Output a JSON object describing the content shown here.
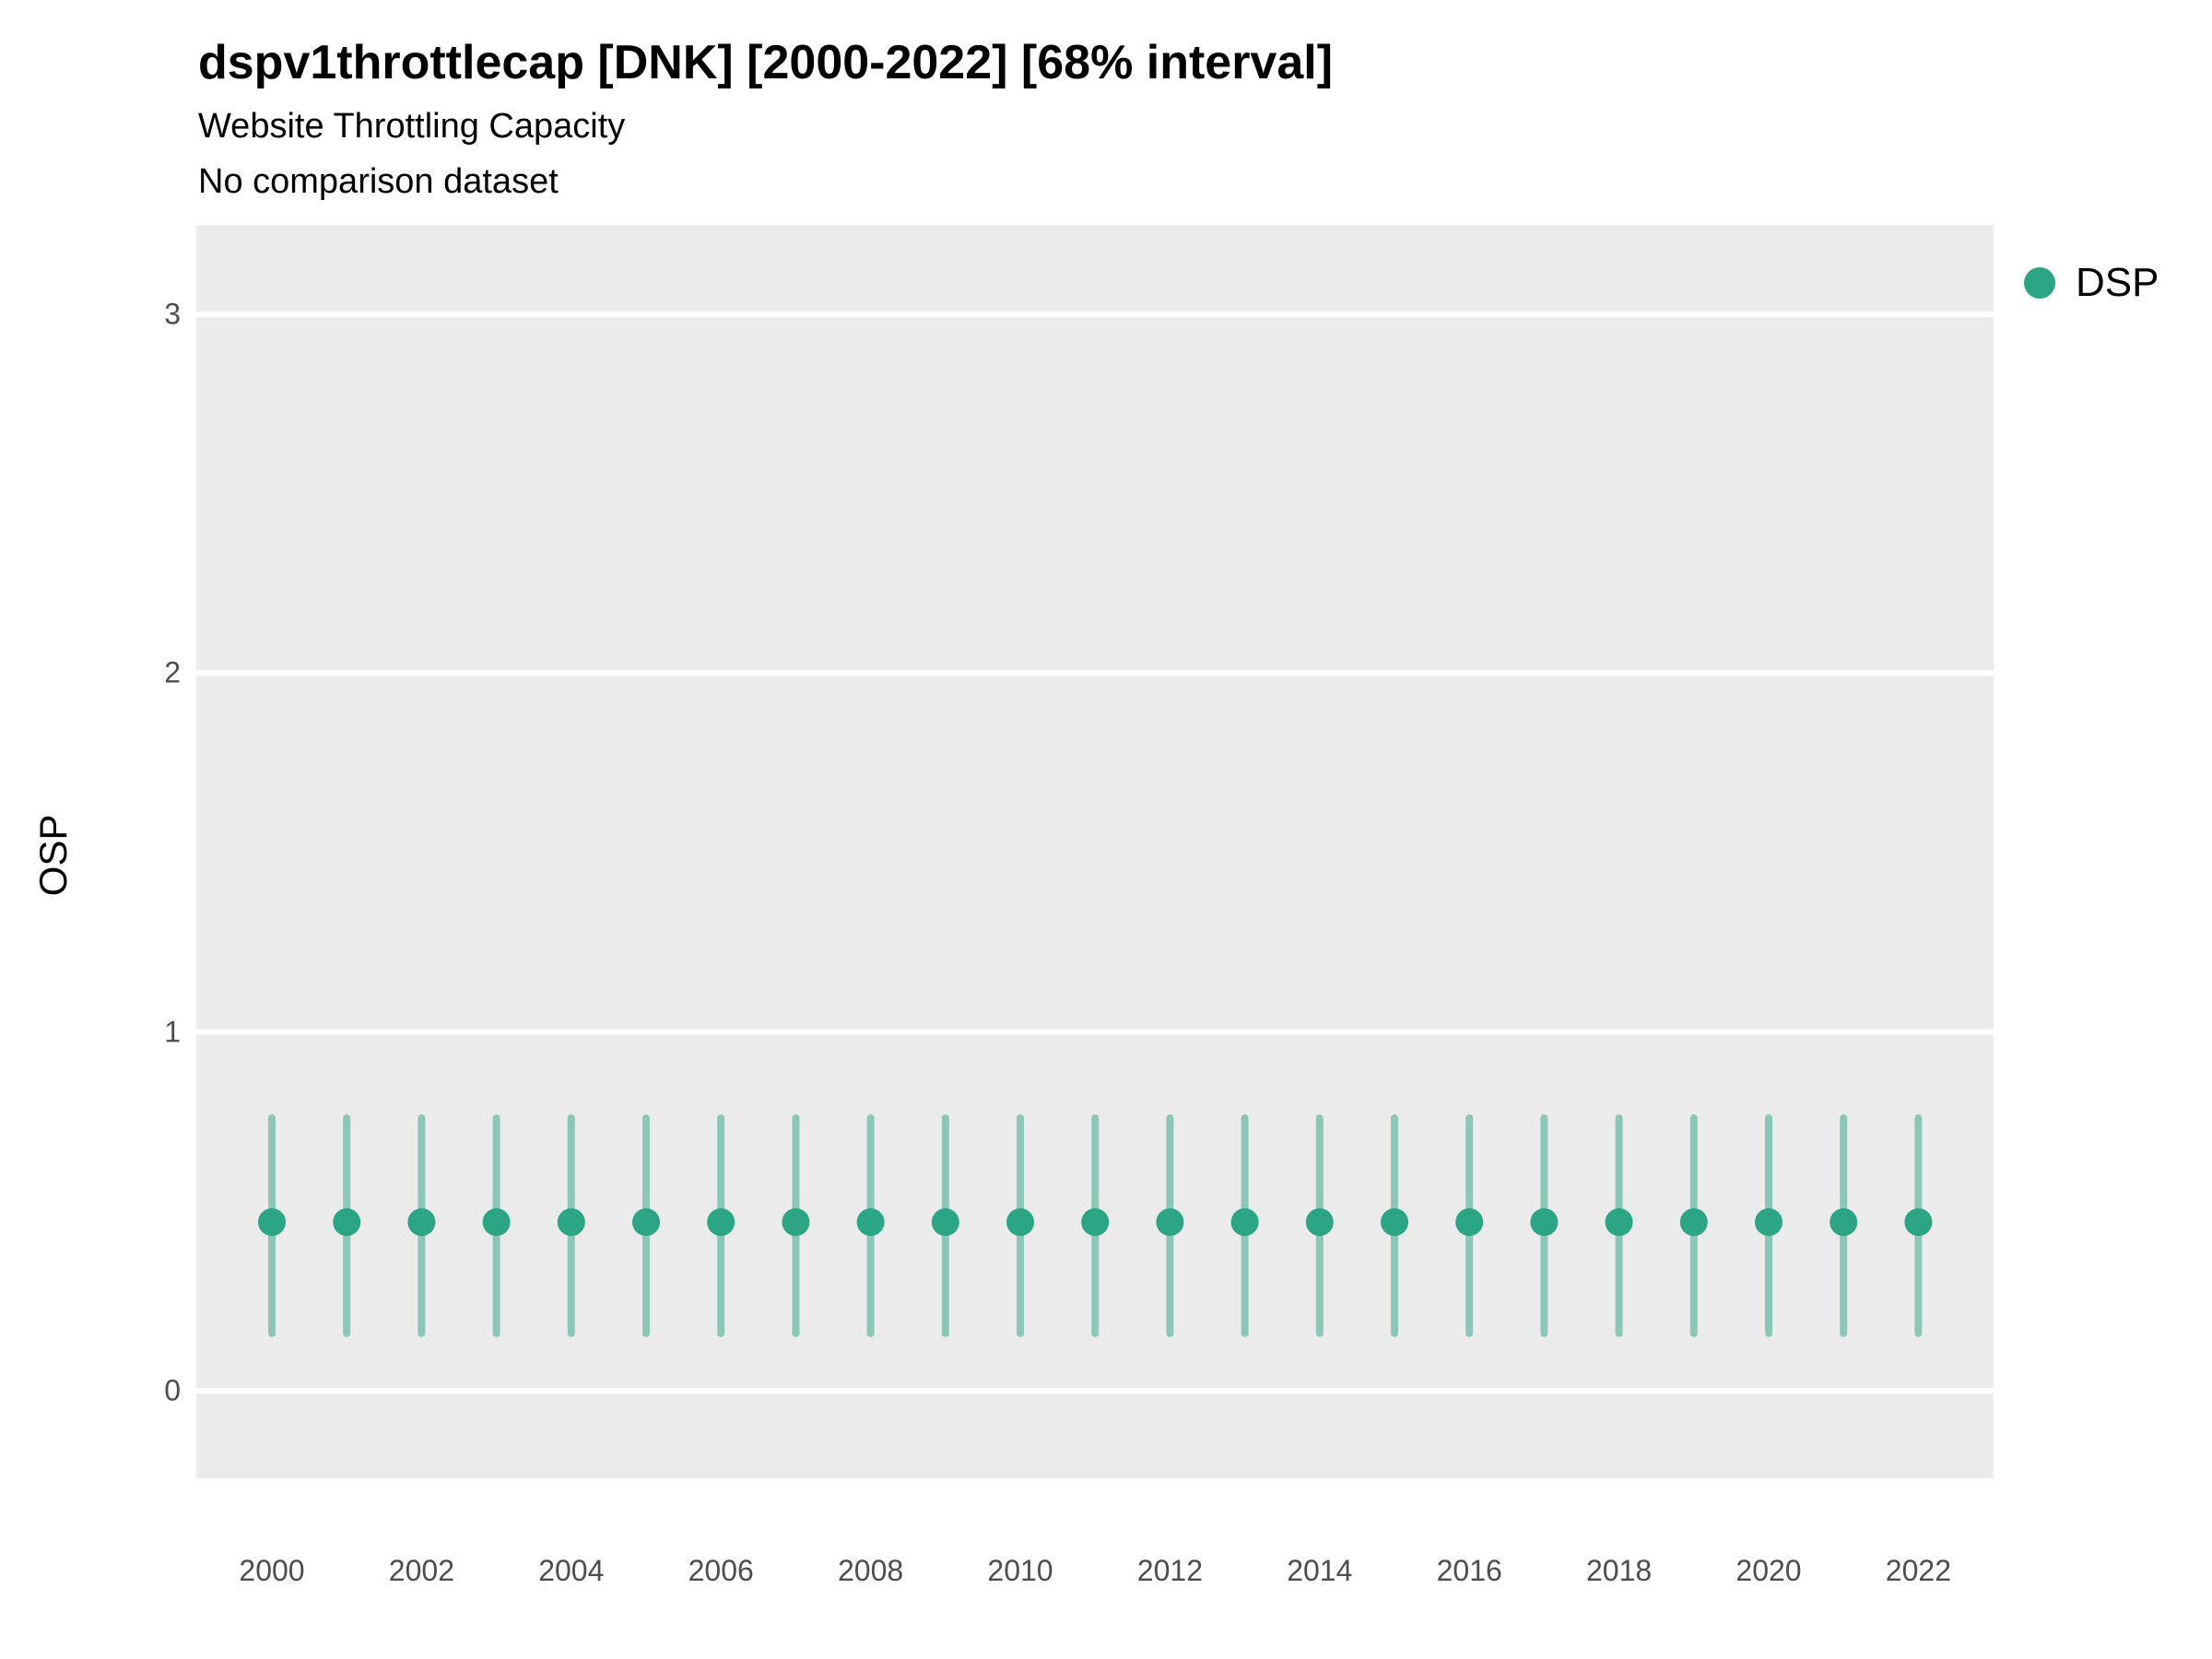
{
  "header": {
    "title": "dspv1throttlecap [DNK] [2000-2022] [68% interval]",
    "subtitle": "Website Throttling Capacity",
    "note": "No comparison dataset"
  },
  "legend": {
    "position": "right",
    "items": [
      {
        "label": "DSP",
        "color": "#2BA584"
      }
    ]
  },
  "chart_data": {
    "type": "scatter",
    "title": "dspv1throttlecap [DNK] [2000-2022] [68% interval]",
    "subtitle": "Website Throttling Capacity",
    "note": "No comparison dataset",
    "interval": "68%",
    "country": "DNK",
    "xlabel": "",
    "ylabel": "OSP",
    "x": [
      2000,
      2001,
      2002,
      2003,
      2004,
      2005,
      2006,
      2007,
      2008,
      2009,
      2010,
      2011,
      2012,
      2013,
      2014,
      2015,
      2016,
      2017,
      2018,
      2019,
      2020,
      2021,
      2022
    ],
    "series": [
      {
        "name": "DSP",
        "center": [
          0.47,
          0.47,
          0.47,
          0.47,
          0.47,
          0.47,
          0.47,
          0.47,
          0.47,
          0.47,
          0.47,
          0.47,
          0.47,
          0.47,
          0.47,
          0.47,
          0.47,
          0.47,
          0.47,
          0.47,
          0.47,
          0.47,
          0.47
        ],
        "lower": [
          0.16,
          0.16,
          0.16,
          0.16,
          0.16,
          0.16,
          0.16,
          0.16,
          0.16,
          0.16,
          0.16,
          0.16,
          0.16,
          0.16,
          0.16,
          0.16,
          0.16,
          0.16,
          0.16,
          0.16,
          0.16,
          0.16,
          0.16
        ],
        "upper": [
          0.76,
          0.76,
          0.76,
          0.76,
          0.76,
          0.76,
          0.76,
          0.76,
          0.76,
          0.76,
          0.76,
          0.76,
          0.76,
          0.76,
          0.76,
          0.76,
          0.76,
          0.76,
          0.76,
          0.76,
          0.76,
          0.76,
          0.76
        ]
      }
    ],
    "ylim": [
      -0.24,
      3.25
    ],
    "yticks": [
      0,
      1,
      2,
      3
    ],
    "xticks": [
      2000,
      2002,
      2004,
      2006,
      2008,
      2010,
      2012,
      2014,
      2016,
      2018,
      2020,
      2022
    ],
    "grid": true,
    "legend_position": "right",
    "colors": {
      "point": "#2BA584",
      "interval_opacity": "0.5",
      "panel_bg": "#ebebeb",
      "grid": "#ffffff",
      "tick_text": "#4d4d4d"
    }
  }
}
